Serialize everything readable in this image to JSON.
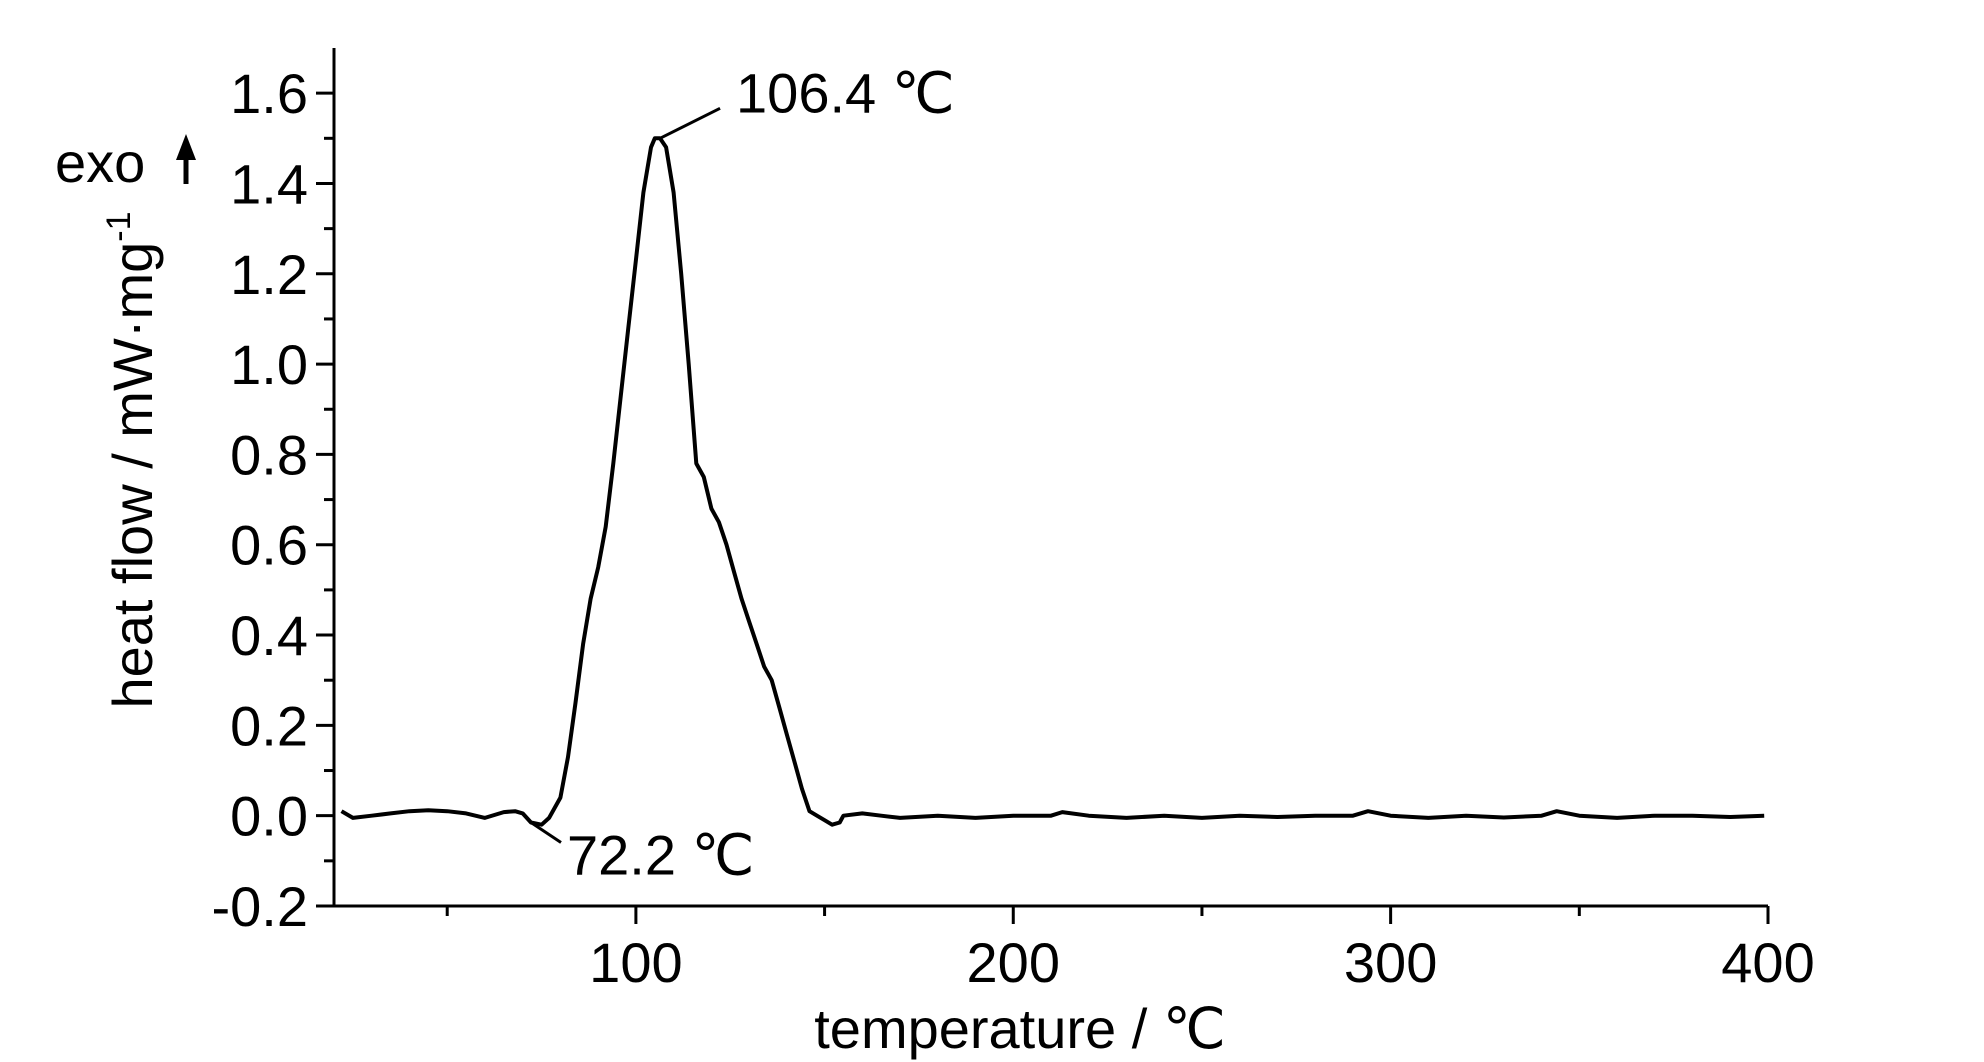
{
  "chart_data": {
    "type": "line",
    "title": "",
    "xlabel": "temperature / ℃",
    "ylabel_main": "heat flow / mW·mg",
    "ylabel_sup": "-1",
    "direction_label": "exo",
    "xlim": [
      20,
      400
    ],
    "ylim": [
      -0.2,
      1.7
    ],
    "x_ticks": [
      100,
      200,
      300,
      400
    ],
    "x_tick_labels": [
      "100",
      "200",
      "300",
      "400"
    ],
    "x_minor_ticks": [
      50,
      150,
      250,
      350
    ],
    "y_ticks": [
      -0.2,
      0.0,
      0.2,
      0.4,
      0.6,
      0.8,
      1.0,
      1.2,
      1.4,
      1.6
    ],
    "y_tick_labels": [
      "-0.2",
      "0.0",
      "0.2",
      "0.4",
      "0.6",
      "0.8",
      "1.0",
      "1.2",
      "1.4",
      "1.6"
    ],
    "y_minor_ticks": [
      -0.1,
      0.1,
      0.3,
      0.5,
      0.7,
      0.9,
      1.1,
      1.3,
      1.5
    ],
    "grid": false,
    "series": [
      {
        "color": "#000000",
        "x": [
          22,
          25,
          30,
          35,
          40,
          45,
          50,
          55,
          60,
          65,
          68,
          70,
          72.2,
          75,
          77,
          80,
          82,
          84,
          86,
          88,
          90,
          92,
          94,
          96,
          98,
          100,
          102,
          104,
          105,
          106.4,
          108,
          110,
          112,
          114,
          116,
          118,
          120,
          122,
          124,
          126,
          128,
          130,
          132,
          134,
          136,
          138,
          140,
          142,
          144,
          146,
          148,
          150,
          152,
          154,
          155,
          160,
          165,
          170,
          180,
          190,
          200,
          210,
          213,
          220,
          230,
          240,
          250,
          260,
          270,
          280,
          290,
          294,
          300,
          310,
          320,
          330,
          340,
          344,
          350,
          360,
          370,
          380,
          390,
          399
        ],
        "y": [
          0.01,
          -0.005,
          0.0,
          0.005,
          0.01,
          0.012,
          0.01,
          0.005,
          -0.005,
          0.008,
          0.01,
          0.005,
          -0.015,
          -0.02,
          -0.005,
          0.04,
          0.13,
          0.25,
          0.38,
          0.48,
          0.55,
          0.64,
          0.78,
          0.93,
          1.08,
          1.23,
          1.38,
          1.48,
          1.5,
          1.5,
          1.48,
          1.38,
          1.2,
          1.0,
          0.78,
          0.75,
          0.68,
          0.65,
          0.6,
          0.54,
          0.48,
          0.43,
          0.38,
          0.33,
          0.3,
          0.24,
          0.18,
          0.12,
          0.06,
          0.01,
          0.0,
          -0.01,
          -0.02,
          -0.015,
          0.0,
          0.005,
          0.0,
          -0.005,
          0.0,
          -0.005,
          0.0,
          0.0,
          0.008,
          0.0,
          -0.005,
          0.0,
          -0.005,
          0.0,
          -0.003,
          0.0,
          0.0,
          0.01,
          0.0,
          -0.005,
          0.0,
          -0.004,
          0.0,
          0.01,
          0.0,
          -0.005,
          0.0,
          0.0,
          -0.003,
          0.0
        ]
      }
    ],
    "annotations": [
      {
        "text": "106.4 ℃",
        "x": 106.4,
        "y": 1.5
      },
      {
        "text": "72.2 ℃",
        "x": 72.2,
        "y": -0.015
      }
    ]
  }
}
